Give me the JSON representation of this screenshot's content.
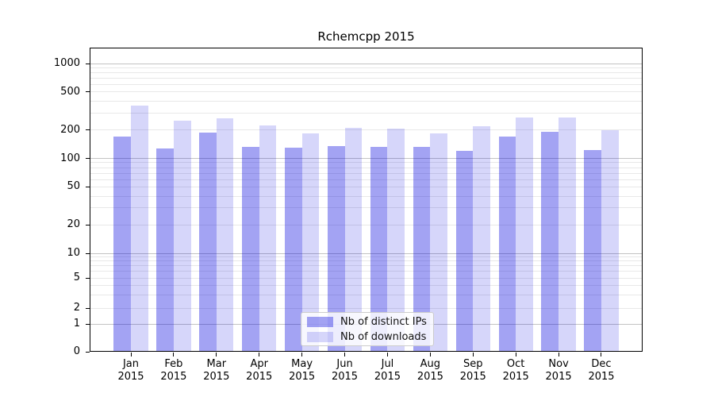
{
  "figure": {
    "background": "#ffffff",
    "frame_color": "#000000"
  },
  "chart_data": {
    "type": "bar",
    "title": "Rchemcpp 2015",
    "xlabel": "",
    "ylabel": "",
    "categories": [
      "Jan",
      "Feb",
      "Mar",
      "Apr",
      "May",
      "Jun",
      "Jul",
      "Aug",
      "Sep",
      "Oct",
      "Nov",
      "Dec"
    ],
    "category_year": "2015",
    "series": [
      {
        "name": "Nb of distinct IPs",
        "color_hex": "#a3a3f4",
        "fill": "rgba(0,0,222,0.36)",
        "values": [
          170,
          127,
          187,
          133,
          129,
          135,
          133,
          132,
          121,
          170,
          190,
          123
        ]
      },
      {
        "name": "Nb of downloads",
        "color_hex": "#d9d9fb",
        "fill": "rgba(0,0,222,0.16)",
        "values": [
          358,
          248,
          266,
          221,
          182,
          209,
          204,
          182,
          220,
          268,
          272,
          198
        ]
      }
    ],
    "y_scale": "symlog",
    "y_ticks": [
      0,
      1,
      2,
      5,
      10,
      20,
      50,
      100,
      200,
      500,
      1000
    ],
    "ylim": [
      0,
      1400
    ],
    "grid": "both",
    "grid_major_color": "#c3c3c3",
    "grid_minor_color": "#e8e8e8",
    "legend_position": "lower center"
  },
  "legend": {
    "items": [
      {
        "label": "Nb of distinct IPs",
        "swatch_hex": "#a3a3f4"
      },
      {
        "label": "Nb of downloads",
        "swatch_hex": "#d9d9fb"
      }
    ]
  }
}
